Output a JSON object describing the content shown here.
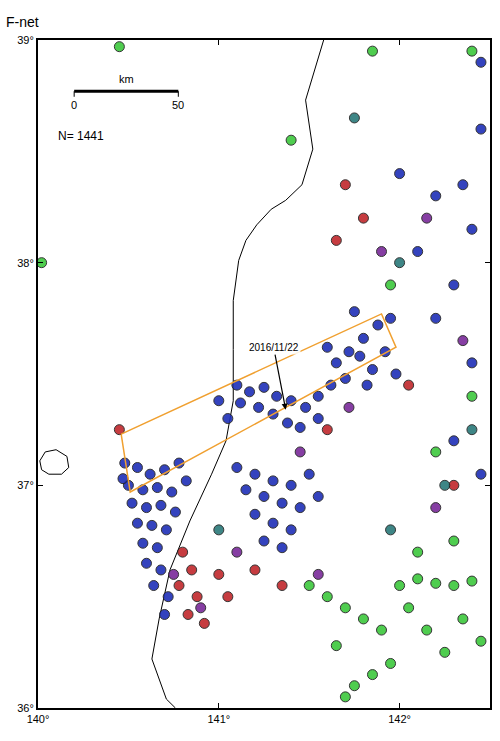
{
  "chart_data": {
    "type": "scatter",
    "title": "F-net",
    "xlim": [
      140,
      142.5
    ],
    "ylim": [
      36,
      39
    ],
    "xticks": [
      {
        "value": 140,
        "label": "140°"
      },
      {
        "value": 141,
        "label": "141°"
      },
      {
        "value": 142,
        "label": "142°"
      }
    ],
    "yticks": [
      {
        "value": 36,
        "label": "36°"
      },
      {
        "value": 37,
        "label": "37°"
      },
      {
        "value": 38,
        "label": "38°"
      },
      {
        "value": 39,
        "label": "39°"
      }
    ],
    "grid": false,
    "marker": "circle",
    "count_label": "N= 1441",
    "scale_bar": {
      "label": "km",
      "ticks": [
        0,
        50
      ]
    },
    "coastline": {
      "color": "#000000",
      "lon": [
        141.58,
        141.48,
        141.52,
        141.46,
        141.37,
        141.29,
        141.21,
        141.15,
        141.11,
        141.08,
        141.08,
        141.08,
        141.04,
        140.96,
        140.84,
        140.73,
        140.67,
        140.63,
        140.71,
        140.76
      ],
      "lat": [
        39.0,
        38.73,
        38.51,
        38.35,
        38.28,
        38.24,
        38.17,
        38.1,
        38.01,
        37.83,
        37.61,
        37.38,
        37.2,
        37.05,
        36.84,
        36.62,
        36.4,
        36.22,
        36.04,
        36.0
      ]
    },
    "lakes": [
      {
        "lon": [
          140.01,
          140.04,
          140.1,
          140.16,
          140.17,
          140.13,
          140.06,
          140.02,
          140.01
        ],
        "lat": [
          37.11,
          37.15,
          37.16,
          37.13,
          37.08,
          37.05,
          37.05,
          37.07,
          37.11
        ]
      }
    ],
    "box": {
      "color": "#f0a030",
      "lon": [
        140.46,
        141.9,
        141.98,
        140.51,
        140.46
      ],
      "lat": [
        37.23,
        37.77,
        37.62,
        36.97,
        37.23
      ]
    },
    "annotation": {
      "text": "2016/11/22",
      "lon": 141.37,
      "lat": 37.34
    },
    "series": [
      {
        "color": "#1f2fb8",
        "lon": [
          140.48,
          140.55,
          140.62,
          140.7,
          140.5,
          140.58,
          140.66,
          140.74,
          140.82,
          140.52,
          140.6,
          140.68,
          140.76,
          140.55,
          140.63,
          140.71,
          140.58,
          140.66,
          140.6,
          140.68,
          140.64,
          140.72,
          140.7,
          140.47,
          140.78,
          141.1,
          141.17,
          141.25,
          141.32,
          141.4,
          141.48,
          141.55,
          141.62,
          141.12,
          141.22,
          141.3,
          141.38,
          141.45,
          141.55,
          141.05,
          141.0,
          141.65,
          141.72,
          141.8,
          141.88,
          141.78,
          141.85,
          141.92,
          141.7,
          141.95,
          141.75,
          141.6,
          141.98,
          141.82,
          141.1,
          141.2,
          141.3,
          141.4,
          141.5,
          141.15,
          141.25,
          141.35,
          141.45,
          141.2,
          141.3,
          141.4,
          141.25,
          141.35,
          141.55,
          142.0,
          142.2,
          142.35,
          142.4,
          142.1,
          142.45,
          142.3,
          142.45,
          142.2,
          142.4,
          142.3,
          142.45
        ],
        "lat": [
          37.1,
          37.08,
          37.05,
          37.07,
          37.0,
          36.98,
          36.99,
          36.97,
          37.02,
          36.92,
          36.9,
          36.91,
          36.88,
          36.83,
          36.82,
          36.8,
          36.74,
          36.72,
          36.65,
          36.62,
          36.55,
          36.5,
          36.42,
          37.03,
          37.1,
          37.45,
          37.42,
          37.44,
          37.4,
          37.38,
          37.35,
          37.4,
          37.45,
          37.37,
          37.35,
          37.32,
          37.28,
          37.26,
          37.3,
          37.3,
          37.38,
          37.55,
          37.6,
          37.66,
          37.72,
          37.58,
          37.52,
          37.6,
          37.48,
          37.75,
          37.78,
          37.62,
          37.5,
          37.45,
          37.08,
          37.05,
          37.02,
          37.0,
          37.05,
          36.98,
          36.95,
          36.92,
          36.9,
          36.87,
          36.83,
          36.8,
          36.75,
          36.72,
          36.95,
          38.4,
          38.3,
          38.35,
          38.15,
          38.05,
          38.6,
          37.9,
          38.9,
          37.75,
          37.55,
          37.2,
          37.05
        ]
      },
      {
        "color": "#c0282c",
        "lon": [
          140.8,
          140.85,
          140.78,
          140.88,
          140.83,
          140.92,
          141.0,
          141.05,
          141.2,
          141.35,
          141.65,
          141.7,
          141.8,
          142.05,
          142.3,
          141.6,
          140.45
        ],
        "lat": [
          36.7,
          36.62,
          36.55,
          36.5,
          36.42,
          36.38,
          36.6,
          36.5,
          36.62,
          36.55,
          38.1,
          38.35,
          38.2,
          37.45,
          37.0,
          37.25,
          37.25
        ]
      },
      {
        "color": "#7a2a9a",
        "lon": [
          140.75,
          140.9,
          141.1,
          141.45,
          141.9,
          142.15,
          142.35,
          142.2,
          141.55,
          141.72
        ],
        "lat": [
          36.6,
          36.45,
          36.7,
          37.15,
          38.05,
          38.2,
          37.65,
          36.9,
          36.6,
          37.35
        ]
      },
      {
        "color": "#3cc83c",
        "lon": [
          141.5,
          141.6,
          141.7,
          141.8,
          141.9,
          142.0,
          142.1,
          142.2,
          142.3,
          142.4,
          142.05,
          141.95,
          141.85,
          141.75,
          142.15,
          142.25,
          142.35,
          142.45,
          141.65,
          142.1,
          142.3,
          142.2,
          142.4,
          141.95,
          141.4,
          140.02,
          140.45,
          141.85,
          142.4,
          141.7
        ],
        "lat": [
          36.55,
          36.5,
          36.45,
          36.4,
          36.35,
          36.55,
          36.58,
          36.56,
          36.55,
          36.57,
          36.45,
          36.2,
          36.15,
          36.1,
          36.35,
          36.25,
          36.4,
          36.3,
          36.28,
          36.7,
          36.75,
          37.15,
          37.4,
          37.9,
          38.55,
          38.0,
          38.97,
          38.95,
          38.95,
          36.05
        ]
      },
      {
        "color": "#2a7a7a",
        "lon": [
          142.25,
          142.4,
          141.95,
          142.0,
          141.75,
          141.0
        ],
        "lat": [
          37.0,
          37.25,
          36.8,
          38.0,
          38.65,
          36.8
        ]
      }
    ]
  }
}
